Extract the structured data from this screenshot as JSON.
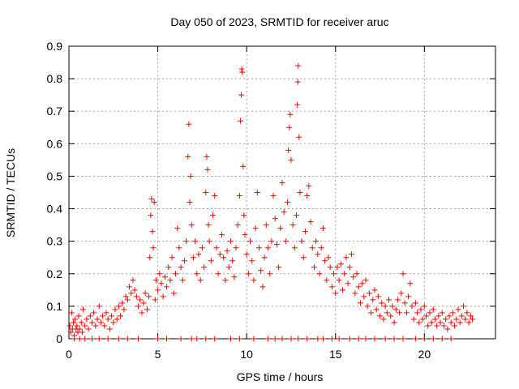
{
  "chart_data": {
    "type": "scatter",
    "title": "Day 050 of 2023, SRMTID for receiver aruc",
    "xlabel": "GPS time / hours",
    "ylabel": "SRMTID / TECUs",
    "xlim": [
      0,
      24
    ],
    "ylim": [
      0,
      0.9
    ],
    "xticks": [
      0,
      5,
      10,
      15,
      20
    ],
    "yticks": [
      0,
      0.1,
      0.2,
      0.3,
      0.4,
      0.5,
      0.6,
      0.7,
      0.8,
      0.9
    ],
    "ytick_labels": [
      "0",
      "0.1",
      "0.2",
      "0.3",
      "0.4",
      "0.5",
      "0.6",
      "0.7",
      "0.8",
      "0.9"
    ],
    "grid": true,
    "marker": "+",
    "color": "#ff0000",
    "series": [
      {
        "name": "SRMTID",
        "points": [
          [
            0.05,
            0.04
          ],
          [
            0.1,
            0.02
          ],
          [
            0.15,
            0.08
          ],
          [
            0.2,
            0.03
          ],
          [
            0.25,
            0.05
          ],
          [
            0.3,
            0.01
          ],
          [
            0.35,
            0.06
          ],
          [
            0.4,
            0.03
          ],
          [
            0.45,
            0.04
          ],
          [
            0.5,
            0.02
          ],
          [
            0.55,
            0.07
          ],
          [
            0.6,
            0.03
          ],
          [
            0.7,
            0.05
          ],
          [
            0.75,
            0.02
          ],
          [
            0.8,
            0.09
          ],
          [
            0.9,
            0.04
          ],
          [
            1.0,
            0.06
          ],
          [
            1.1,
            0.03
          ],
          [
            1.2,
            0.07
          ],
          [
            1.3,
            0.05
          ],
          [
            1.4,
            0.08
          ],
          [
            1.5,
            0.04
          ],
          [
            1.6,
            0.06
          ],
          [
            1.7,
            0.1
          ],
          [
            1.8,
            0.05
          ],
          [
            1.9,
            0.07
          ],
          [
            2.0,
            0.04
          ],
          [
            2.1,
            0.08
          ],
          [
            2.2,
            0.06
          ],
          [
            2.3,
            0.03
          ],
          [
            2.4,
            0.07
          ],
          [
            2.5,
            0.05
          ],
          [
            2.6,
            0.09
          ],
          [
            2.7,
            0.06
          ],
          [
            2.8,
            0.1
          ],
          [
            2.9,
            0.07
          ],
          [
            3.0,
            0.11
          ],
          [
            3.1,
            0.09
          ],
          [
            3.2,
            0.13
          ],
          [
            3.3,
            0.12
          ],
          [
            3.4,
            0.16
          ],
          [
            3.5,
            0.14
          ],
          [
            3.6,
            0.18
          ],
          [
            3.7,
            0.15
          ],
          [
            3.8,
            0.13
          ],
          [
            3.9,
            0.1
          ],
          [
            4.0,
            0.12
          ],
          [
            4.1,
            0.08
          ],
          [
            4.2,
            0.11
          ],
          [
            4.3,
            0.14
          ],
          [
            4.4,
            0.09
          ],
          [
            4.5,
            0.13
          ],
          [
            4.55,
            0.25
          ],
          [
            4.6,
            0.38
          ],
          [
            4.65,
            0.43
          ],
          [
            4.7,
            0.33
          ],
          [
            4.75,
            0.28
          ],
          [
            4.8,
            0.42
          ],
          [
            4.85,
            0.12
          ],
          [
            4.9,
            0.18
          ],
          [
            5.0,
            0.15
          ],
          [
            5.1,
            0.2
          ],
          [
            5.2,
            0.17
          ],
          [
            5.3,
            0.13
          ],
          [
            5.4,
            0.19
          ],
          [
            5.5,
            0.16
          ],
          [
            5.6,
            0.22
          ],
          [
            5.7,
            0.18
          ],
          [
            5.8,
            0.25
          ],
          [
            5.9,
            0.14
          ],
          [
            6.0,
            0.2
          ],
          [
            6.1,
            0.34
          ],
          [
            6.2,
            0.28
          ],
          [
            6.3,
            0.22
          ],
          [
            6.4,
            0.18
          ],
          [
            6.5,
            0.24
          ],
          [
            6.6,
            0.3
          ],
          [
            6.7,
            0.56
          ],
          [
            6.75,
            0.66
          ],
          [
            6.8,
            0.42
          ],
          [
            6.85,
            0.5
          ],
          [
            6.9,
            0.35
          ],
          [
            7.0,
            0.25
          ],
          [
            7.1,
            0.3
          ],
          [
            7.2,
            0.2
          ],
          [
            7.3,
            0.26
          ],
          [
            7.4,
            0.18
          ],
          [
            7.5,
            0.28
          ],
          [
            7.6,
            0.22
          ],
          [
            7.7,
            0.45
          ],
          [
            7.75,
            0.56
          ],
          [
            7.8,
            0.52
          ],
          [
            7.85,
            0.35
          ],
          [
            7.9,
            0.3
          ],
          [
            8.0,
            0.24
          ],
          [
            8.1,
            0.38
          ],
          [
            8.2,
            0.44
          ],
          [
            8.3,
            0.28
          ],
          [
            8.4,
            0.2
          ],
          [
            8.5,
            0.26
          ],
          [
            8.6,
            0.32
          ],
          [
            8.7,
            0.25
          ],
          [
            8.8,
            0.18
          ],
          [
            8.9,
            0.27
          ],
          [
            9.0,
            0.22
          ],
          [
            9.1,
            0.3
          ],
          [
            9.2,
            0.24
          ],
          [
            9.3,
            0.19
          ],
          [
            9.4,
            0.28
          ],
          [
            9.5,
            0.35
          ],
          [
            9.6,
            0.44
          ],
          [
            9.65,
            0.67
          ],
          [
            9.7,
            0.75
          ],
          [
            9.72,
            0.83
          ],
          [
            9.75,
            0.82
          ],
          [
            9.8,
            0.53
          ],
          [
            9.85,
            0.38
          ],
          [
            9.9,
            0.32
          ],
          [
            10.0,
            0.26
          ],
          [
            10.1,
            0.2
          ],
          [
            10.2,
            0.3
          ],
          [
            10.3,
            0.24
          ],
          [
            10.4,
            0.18
          ],
          [
            10.5,
            0.34
          ],
          [
            10.6,
            0.45
          ],
          [
            10.7,
            0.28
          ],
          [
            10.8,
            0.21
          ],
          [
            10.9,
            0.16
          ],
          [
            11.0,
            0.25
          ],
          [
            11.1,
            0.35
          ],
          [
            11.2,
            0.28
          ],
          [
            11.3,
            0.2
          ],
          [
            11.4,
            0.3
          ],
          [
            11.5,
            0.44
          ],
          [
            11.6,
            0.37
          ],
          [
            11.7,
            0.29
          ],
          [
            11.8,
            0.22
          ],
          [
            11.9,
            0.34
          ],
          [
            12.0,
            0.48
          ],
          [
            12.1,
            0.39
          ],
          [
            12.2,
            0.3
          ],
          [
            12.3,
            0.42
          ],
          [
            12.35,
            0.58
          ],
          [
            12.4,
            0.65
          ],
          [
            12.45,
            0.69
          ],
          [
            12.5,
            0.55
          ],
          [
            12.6,
            0.35
          ],
          [
            12.7,
            0.28
          ],
          [
            12.8,
            0.38
          ],
          [
            12.85,
            0.72
          ],
          [
            12.88,
            0.79
          ],
          [
            12.9,
            0.84
          ],
          [
            12.95,
            0.62
          ],
          [
            13.0,
            0.45
          ],
          [
            13.1,
            0.3
          ],
          [
            13.2,
            0.25
          ],
          [
            13.3,
            0.33
          ],
          [
            13.4,
            0.44
          ],
          [
            13.5,
            0.47
          ],
          [
            13.6,
            0.36
          ],
          [
            13.7,
            0.28
          ],
          [
            13.8,
            0.22
          ],
          [
            13.9,
            0.3
          ],
          [
            14.0,
            0.26
          ],
          [
            14.1,
            0.2
          ],
          [
            14.2,
            0.28
          ],
          [
            14.3,
            0.34
          ],
          [
            14.4,
            0.24
          ],
          [
            14.5,
            0.18
          ],
          [
            14.6,
            0.25
          ],
          [
            14.7,
            0.22
          ],
          [
            14.8,
            0.16
          ],
          [
            14.9,
            0.2
          ],
          [
            15.0,
            0.14
          ],
          [
            15.1,
            0.22
          ],
          [
            15.2,
            0.18
          ],
          [
            15.3,
            0.23
          ],
          [
            15.4,
            0.15
          ],
          [
            15.5,
            0.2
          ],
          [
            15.6,
            0.25
          ],
          [
            15.7,
            0.17
          ],
          [
            15.8,
            0.22
          ],
          [
            15.9,
            0.26
          ],
          [
            16.0,
            0.19
          ],
          [
            16.1,
            0.14
          ],
          [
            16.2,
            0.2
          ],
          [
            16.3,
            0.16
          ],
          [
            16.4,
            0.11
          ],
          [
            16.5,
            0.17
          ],
          [
            16.6,
            0.13
          ],
          [
            16.7,
            0.18
          ],
          [
            16.8,
            0.1
          ],
          [
            16.9,
            0.14
          ],
          [
            17.0,
            0.08
          ],
          [
            17.1,
            0.12
          ],
          [
            17.2,
            0.15
          ],
          [
            17.3,
            0.09
          ],
          [
            17.4,
            0.13
          ],
          [
            17.5,
            0.07
          ],
          [
            17.6,
            0.11
          ],
          [
            17.7,
            0.06
          ],
          [
            17.8,
            0.1
          ],
          [
            17.9,
            0.08
          ],
          [
            18.0,
            0.12
          ],
          [
            18.1,
            0.07
          ],
          [
            18.2,
            0.1
          ],
          [
            18.3,
            0.05
          ],
          [
            18.4,
            0.09
          ],
          [
            18.5,
            0.12
          ],
          [
            18.6,
            0.08
          ],
          [
            18.7,
            0.14
          ],
          [
            18.8,
            0.2
          ],
          [
            18.9,
            0.11
          ],
          [
            19.0,
            0.08
          ],
          [
            19.1,
            0.13
          ],
          [
            19.2,
            0.17
          ],
          [
            19.3,
            0.1
          ],
          [
            19.4,
            0.06
          ],
          [
            19.5,
            0.11
          ],
          [
            19.6,
            0.08
          ],
          [
            19.7,
            0.05
          ],
          [
            19.8,
            0.09
          ],
          [
            19.9,
            0.06
          ],
          [
            20.0,
            0.1
          ],
          [
            20.1,
            0.07
          ],
          [
            20.2,
            0.04
          ],
          [
            20.3,
            0.08
          ],
          [
            20.4,
            0.05
          ],
          [
            20.5,
            0.09
          ],
          [
            20.6,
            0.06
          ],
          [
            20.7,
            0.04
          ],
          [
            20.8,
            0.07
          ],
          [
            20.9,
            0.05
          ],
          [
            21.0,
            0.08
          ],
          [
            21.1,
            0.04
          ],
          [
            21.2,
            0.06
          ],
          [
            21.3,
            0.03
          ],
          [
            21.4,
            0.07
          ],
          [
            21.5,
            0.05
          ],
          [
            21.6,
            0.08
          ],
          [
            21.7,
            0.04
          ],
          [
            21.8,
            0.06
          ],
          [
            21.9,
            0.09
          ],
          [
            22.0,
            0.05
          ],
          [
            22.1,
            0.07
          ],
          [
            22.2,
            0.1
          ],
          [
            22.3,
            0.06
          ],
          [
            22.4,
            0.08
          ],
          [
            22.5,
            0.05
          ],
          [
            22.6,
            0.07
          ],
          [
            22.7,
            0.06
          ]
        ],
        "zero_marks": [
          0.3,
          0.6,
          0.9,
          1.3,
          1.7,
          2.2,
          2.8,
          3.3,
          3.9,
          5.0,
          5.5,
          6.3,
          6.9,
          7.2,
          7.7,
          8.2,
          9.1,
          9.6,
          10.4,
          11.2,
          11.6,
          12.0,
          12.5,
          12.9,
          13.4,
          14.0,
          14.3,
          14.8,
          15.2,
          15.8,
          16.3,
          16.7,
          17.2,
          17.8,
          18.3,
          18.8,
          19.5,
          20.0,
          20.5,
          21.0,
          21.5
        ]
      }
    ]
  }
}
